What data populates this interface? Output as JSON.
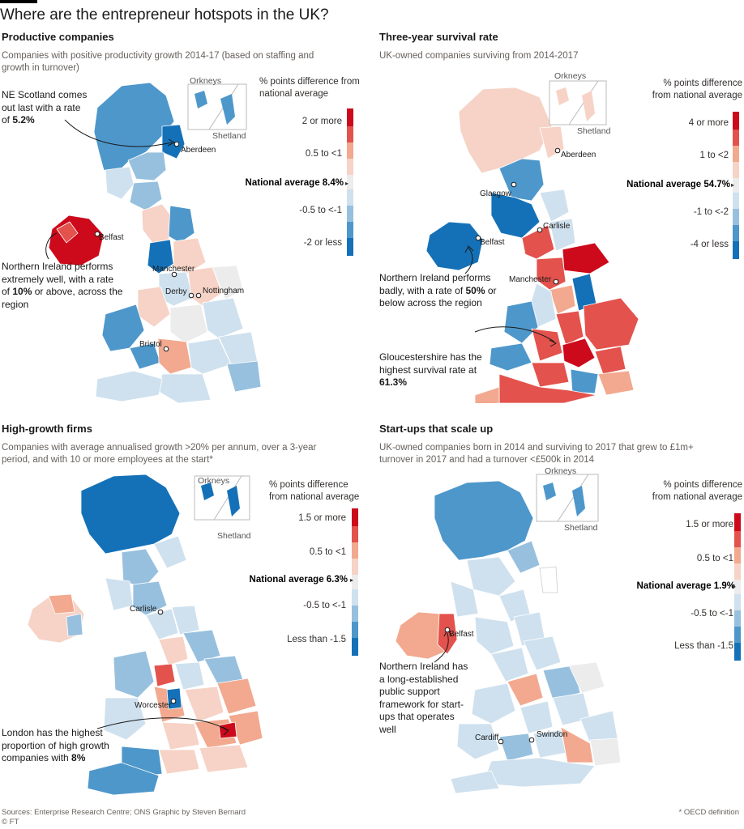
{
  "title": "Where are the entrepreneur hotspots in the UK?",
  "colors": {
    "red_dark": "#cc0a1b",
    "red": "#e3524c",
    "red_light": "#f2a98f",
    "pink_pale": "#f6d3c6",
    "grey": "#ececec",
    "blue_pale": "#cfe1ee",
    "blue_light": "#97c0de",
    "blue": "#4e97cb",
    "blue_dark": "#1471b8"
  },
  "inset_labels": {
    "top": "Orkneys",
    "bottom": "Shetland"
  },
  "legend_heading": "% points difference from national average",
  "panels": [
    {
      "title": "Productive companies",
      "subtitle": "Companies with positive productivity growth 2014-17 (based on staffing and growth in turnover)",
      "legend": {
        "top": "2 or more",
        "upper": "0.5 to <1",
        "national": "National average 8.4%",
        "lower": "-0.5 to <-1",
        "bottom": "-2 or less"
      },
      "cities": [
        "Aberdeen",
        "Belfast",
        "Manchester",
        "Derby",
        "Nottingham",
        "Bristol"
      ],
      "annotation_1": {
        "text_a": "NE Scotland comes out last with a rate of ",
        "bold": "5.2%",
        "text_b": ""
      },
      "annotation_2": {
        "text_a": "Northern Ireland performs extremely well, with a rate of ",
        "bold": "10%",
        "text_b": " or above, across the region"
      }
    },
    {
      "title": "Three-year survival rate",
      "subtitle": "UK-owned companies surviving from 2014-2017",
      "legend": {
        "top": "4 or more",
        "upper": "1 to <2",
        "national": "National average 54.7%",
        "lower": "-1 to <-2",
        "bottom": "-4 or less"
      },
      "cities": [
        "Aberdeen",
        "Glasgow",
        "Carlisle",
        "Belfast",
        "Manchester"
      ],
      "annotation_1": {
        "text_a": "Northern Ireland performs badly, with a rate of ",
        "bold": "50%",
        "text_b": " or below across the region"
      },
      "annotation_2": {
        "text_a": "Gloucestershire has the highest survival rate at ",
        "bold": "61.3%",
        "text_b": ""
      }
    },
    {
      "title": "High-growth firms",
      "subtitle": "Companies with average annualised growth >20% per annum, over a 3-year period, and with 10 or more employees at the start*",
      "legend": {
        "top": "1.5 or more",
        "upper": "0.5 to <1",
        "national": "National average 6.3%",
        "lower": "-0.5 to <-1",
        "bottom": "Less than -1.5"
      },
      "cities": [
        "Carlisle",
        "Worcester"
      ],
      "annotation_1": {
        "text_a": "London has the highest proportion of high growth companies with ",
        "bold": "8%",
        "text_b": ""
      }
    },
    {
      "title": "Start-ups that scale up",
      "subtitle": "UK-owned companies born in 2014 and surviving to 2017 that grew to £1m+ turnover in 2017 and had a turnover <£500k in 2014",
      "legend": {
        "top": "1.5 or more",
        "upper": "0.5 to <1",
        "national": "National average 1.9%",
        "lower": "-0.5 to <-1",
        "bottom": "Less than -1.5"
      },
      "cities": [
        "Belfast",
        "Cardiff",
        "Swindon"
      ],
      "annotation_1": {
        "text_a": "Northern Ireland has a long-established public support framework for start-ups that operates well",
        "bold": "",
        "text_b": ""
      }
    }
  ],
  "footer": {
    "sources": "Sources: Enterprise Research Centre; ONS   Graphic by Steven Bernard",
    "credit": "© FT",
    "note": "* OECD definition"
  }
}
